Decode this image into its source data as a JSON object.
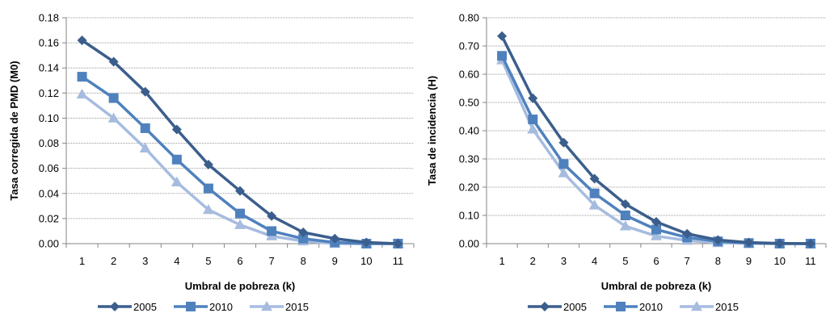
{
  "chart_data": [
    {
      "type": "line",
      "xlabel": "Umbral de pobreza (k)",
      "ylabel": "Tasa corregida de PMD (M0)",
      "x": [
        "1",
        "2",
        "3",
        "4",
        "5",
        "6",
        "7",
        "8",
        "9",
        "10",
        "11"
      ],
      "ylim": [
        0,
        0.18
      ],
      "yticks": [
        "0.00",
        "0.02",
        "0.04",
        "0.06",
        "0.08",
        "0.10",
        "0.12",
        "0.14",
        "0.16",
        "0.18"
      ],
      "grid": true,
      "legend": "bottom",
      "series": [
        {
          "name": "2005",
          "color": "#3b5e8c",
          "marker": "diamond",
          "values": [
            0.162,
            0.145,
            0.121,
            0.091,
            0.063,
            0.042,
            0.022,
            0.009,
            0.004,
            0.001,
            0.0
          ]
        },
        {
          "name": "2010",
          "color": "#4f81bd",
          "marker": "square",
          "values": [
            0.133,
            0.116,
            0.092,
            0.067,
            0.044,
            0.024,
            0.01,
            0.004,
            0.001,
            0.0,
            0.0
          ]
        },
        {
          "name": "2015",
          "color": "#a6bcdf",
          "marker": "triangle",
          "values": [
            0.119,
            0.1,
            0.076,
            0.049,
            0.027,
            0.015,
            0.006,
            0.002,
            0.0,
            0.0,
            0.0
          ]
        }
      ]
    },
    {
      "type": "line",
      "xlabel": "Umbral de pobreza (k)",
      "ylabel": "Tasa de incidencia (H)",
      "x": [
        "1",
        "2",
        "3",
        "4",
        "5",
        "6",
        "7",
        "8",
        "9",
        "10",
        "11"
      ],
      "ylim": [
        0,
        0.8
      ],
      "yticks": [
        "0.00",
        "0.10",
        "0.20",
        "0.30",
        "0.40",
        "0.50",
        "0.60",
        "0.70",
        "0.80"
      ],
      "grid": true,
      "legend": "bottom",
      "series": [
        {
          "name": "2005",
          "color": "#3b5e8c",
          "marker": "diamond",
          "values": [
            0.735,
            0.515,
            0.358,
            0.23,
            0.14,
            0.077,
            0.035,
            0.013,
            0.004,
            0.001,
            0.0
          ]
        },
        {
          "name": "2010",
          "color": "#4f81bd",
          "marker": "square",
          "values": [
            0.665,
            0.44,
            0.282,
            0.178,
            0.1,
            0.05,
            0.022,
            0.008,
            0.002,
            0.0,
            0.0
          ]
        },
        {
          "name": "2015",
          "color": "#a6bcdf",
          "marker": "triangle",
          "values": [
            0.65,
            0.405,
            0.25,
            0.136,
            0.062,
            0.027,
            0.011,
            0.003,
            0.001,
            0.0,
            0.0
          ]
        }
      ]
    }
  ]
}
